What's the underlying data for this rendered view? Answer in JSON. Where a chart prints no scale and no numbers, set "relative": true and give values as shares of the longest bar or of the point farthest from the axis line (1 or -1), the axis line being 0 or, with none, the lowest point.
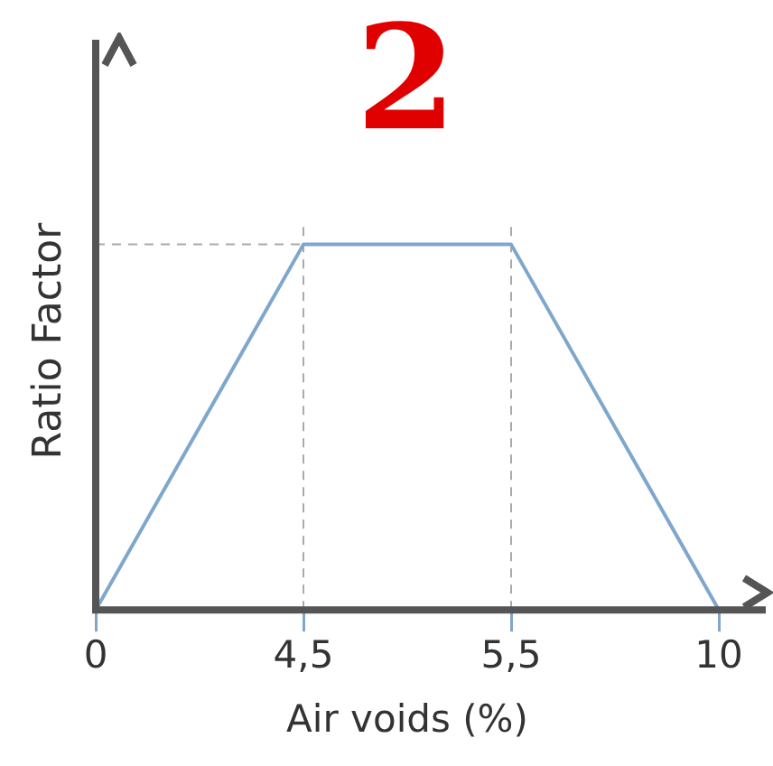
{
  "chart_data": {
    "type": "line",
    "relative": true,
    "xlabel": "Air voids (%)",
    "ylabel": "Ratio Factor",
    "categories": [
      "0",
      "4,5",
      "5,5",
      "10"
    ],
    "series": [
      {
        "color": "#7fa7cc",
        "values": [
          0,
          1,
          1,
          0
        ]
      }
    ],
    "marker": "none",
    "line_style": "solid",
    "grid": false,
    "legend": false,
    "ref_lines": [
      {
        "axis": "x",
        "value": "4,5",
        "color": "#aaaaaa",
        "line_style": "dashed"
      },
      {
        "axis": "x",
        "value": "5,5",
        "color": "#aaaaaa",
        "line_style": "dashed"
      },
      {
        "axis": "y",
        "value": 1,
        "color": "#aaaaaa",
        "line_style": "dashed"
      }
    ],
    "annotations": [
      "2"
    ]
  }
}
